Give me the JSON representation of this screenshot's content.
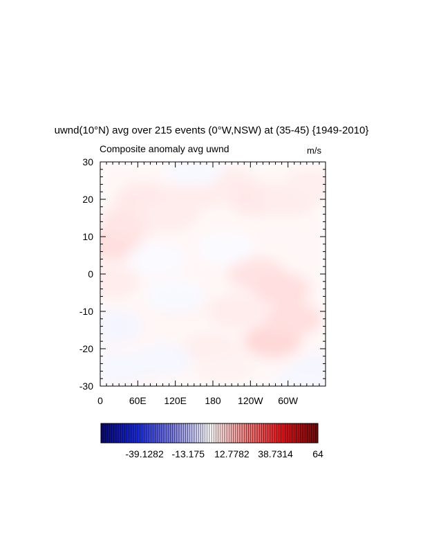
{
  "chart_data": {
    "type": "heatmap",
    "title": "uwnd(10°N) avg over 215 events (0°W,NSW) at (35-45) {1949-2010}",
    "left_string": "Composite anomaly avg uwnd",
    "right_string": "m/s",
    "x_ticks": [
      "0",
      "60E",
      "120E",
      "180",
      "120W",
      "60W"
    ],
    "y_ticks": [
      "30",
      "20",
      "10",
      "0",
      "-10",
      "-20",
      "-30"
    ],
    "xlim": [
      0,
      360
    ],
    "ylim": [
      -30,
      30
    ],
    "colorbar": {
      "labels": [
        "-39.1282",
        "-13.175",
        "12.7782",
        "38.7314",
        "64"
      ],
      "min": -65.08,
      "max": 64,
      "colormap": [
        "#08086e",
        "#1a2ad8",
        "#7f7fe0",
        "#ffffff",
        "#f07f7f",
        "#e0141a",
        "#6e0808"
      ]
    },
    "field_description": "weak anomalies mostly in range -5 to 6 m/s",
    "field_patches": [
      {
        "lon": 20,
        "lat": 8,
        "value": 5
      },
      {
        "lon": 45,
        "lat": 14,
        "value": 4
      },
      {
        "lon": 70,
        "lat": 20,
        "value": 3.5
      },
      {
        "lon": 15,
        "lat": -2,
        "value": 3
      },
      {
        "lon": 110,
        "lat": 16,
        "value": 3
      },
      {
        "lon": 160,
        "lat": 22,
        "value": 3
      },
      {
        "lon": 200,
        "lat": 24,
        "value": 3
      },
      {
        "lon": 250,
        "lat": 20,
        "value": 3.5
      },
      {
        "lon": 300,
        "lat": 20,
        "value": 3
      },
      {
        "lon": 340,
        "lat": 24,
        "value": 2.5
      },
      {
        "lon": 250,
        "lat": 0,
        "value": 4.5
      },
      {
        "lon": 290,
        "lat": -4,
        "value": 5
      },
      {
        "lon": 275,
        "lat": -18,
        "value": 6
      },
      {
        "lon": 310,
        "lat": -12,
        "value": 5
      },
      {
        "lon": 220,
        "lat": -10,
        "value": 3
      },
      {
        "lon": 130,
        "lat": -8,
        "value": 2
      },
      {
        "lon": 175,
        "lat": -20,
        "value": 2.5
      },
      {
        "lon": 200,
        "lat": -25,
        "value": 2
      },
      {
        "lon": 50,
        "lat": -28,
        "value": 1.5
      },
      {
        "lon": 120,
        "lat": -6,
        "value": -1.5
      },
      {
        "lon": 90,
        "lat": 4,
        "value": -1.2
      },
      {
        "lon": 20,
        "lat": -14,
        "value": -2.5
      },
      {
        "lon": 30,
        "lat": -25,
        "value": -2
      },
      {
        "lon": 100,
        "lat": -23,
        "value": -2
      },
      {
        "lon": 150,
        "lat": 28,
        "value": -1.5
      },
      {
        "lon": 200,
        "lat": 7,
        "value": -1
      },
      {
        "lon": 350,
        "lat": -26,
        "value": -2.5
      },
      {
        "lon": 325,
        "lat": -29,
        "value": -2
      }
    ]
  }
}
